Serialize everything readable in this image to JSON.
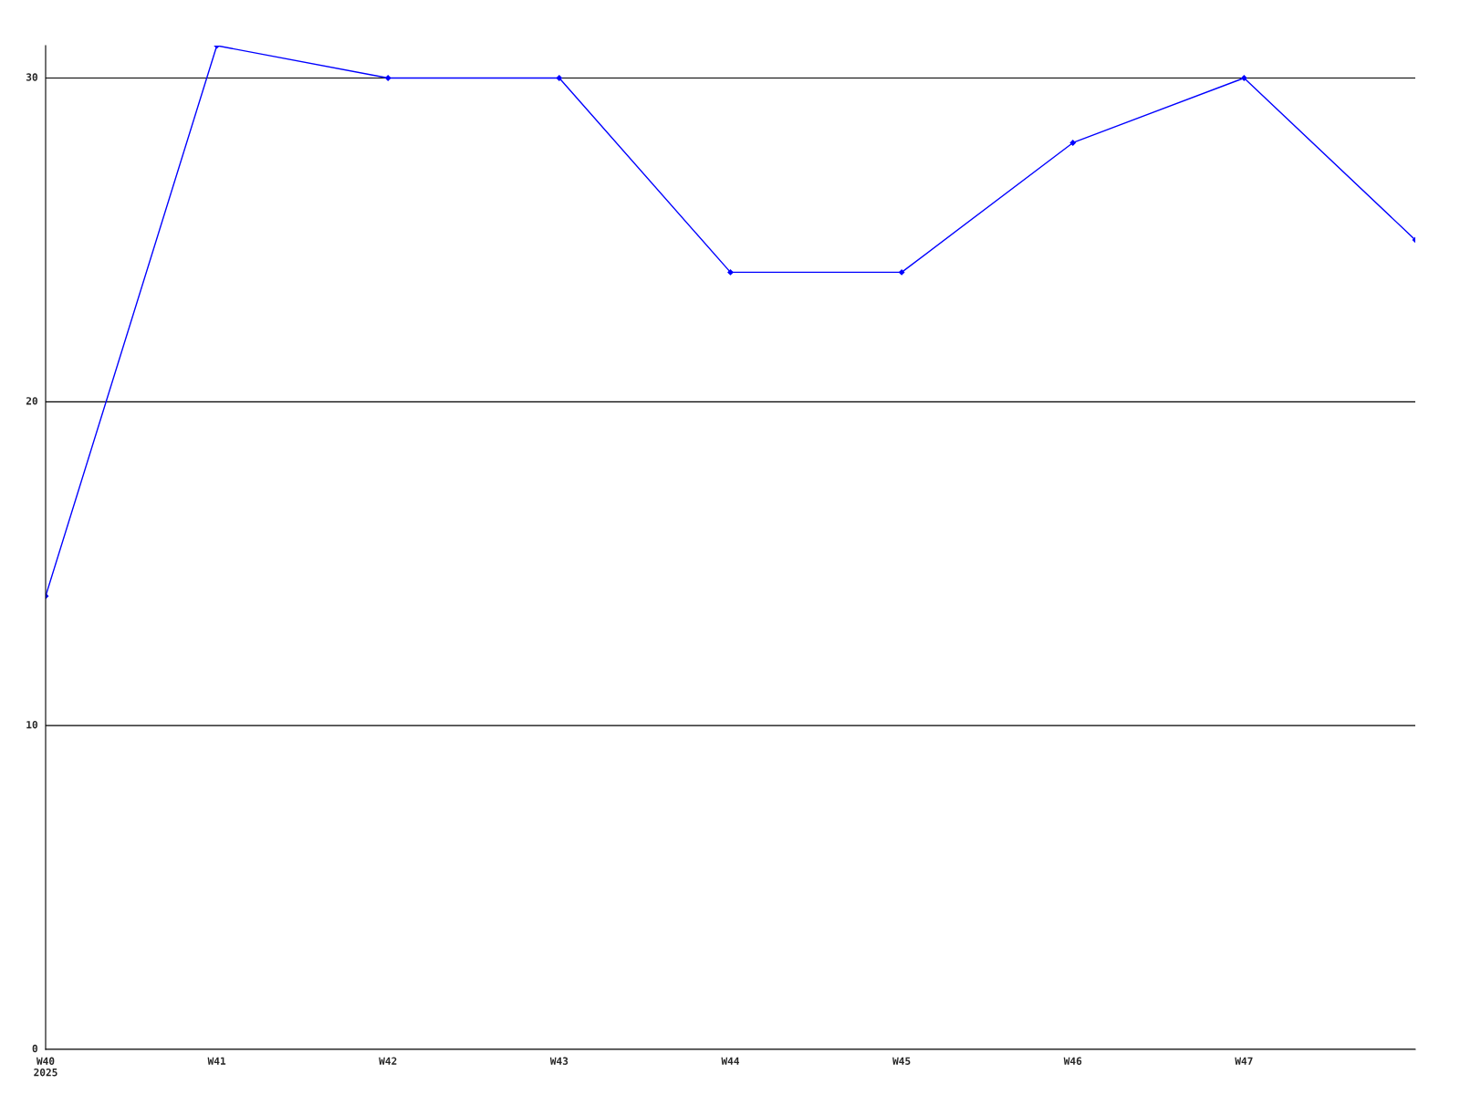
{
  "chart_data": {
    "type": "line",
    "categories": [
      "W40\n2025",
      "W41",
      "W42",
      "W43",
      "W44",
      "W45",
      "W46",
      "W47",
      null
    ],
    "series": [
      {
        "color": "#0000ff",
        "values": [
          14,
          31,
          30,
          30,
          24,
          24,
          28,
          30,
          25
        ]
      }
    ],
    "ylim": [
      0,
      31
    ],
    "yticks": [
      0,
      10,
      20,
      30
    ],
    "grid": "y",
    "marker": "diamond",
    "line_style": "solid"
  }
}
